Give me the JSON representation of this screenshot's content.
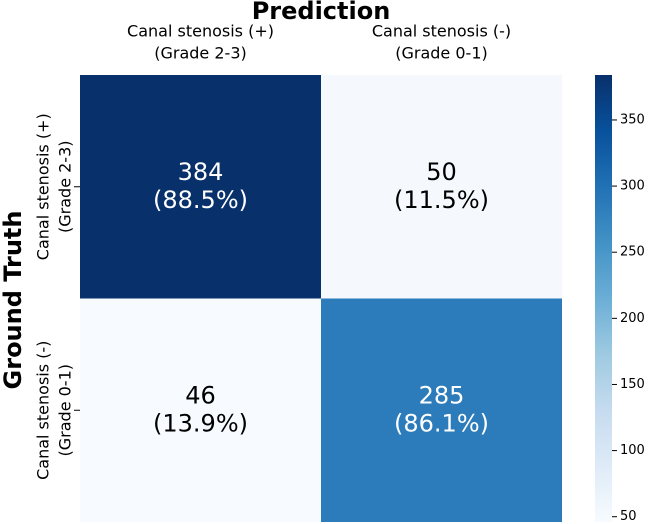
{
  "chart_data": {
    "type": "heatmap",
    "x_label": "Prediction",
    "y_label": "Ground Truth",
    "x_categories": [
      [
        "Canal stenosis (+)",
        "(Grade 2-3)"
      ],
      [
        "Canal stenosis (-)",
        "(Grade 0-1)"
      ]
    ],
    "y_categories": [
      [
        "Canal stenosis (+)",
        "(Grade 2-3)"
      ],
      [
        "Canal stenosis (-)",
        "(Grade 0-1)"
      ]
    ],
    "values": [
      [
        384,
        50
      ],
      [
        46,
        285
      ]
    ],
    "value_labels": [
      [
        "(88.5%)",
        "(11.5%)"
      ],
      [
        "(13.9%)",
        "(86.1%)"
      ]
    ],
    "colormap": [
      "#f7fbff",
      "#deebf7",
      "#c6dbef",
      "#9ecae1",
      "#6baed6",
      "#4292c6",
      "#2171b5",
      "#08519c",
      "#08306b"
    ],
    "clim": [
      46,
      384
    ],
    "cticks": [
      50,
      100,
      150,
      200,
      250,
      300,
      350
    ]
  }
}
